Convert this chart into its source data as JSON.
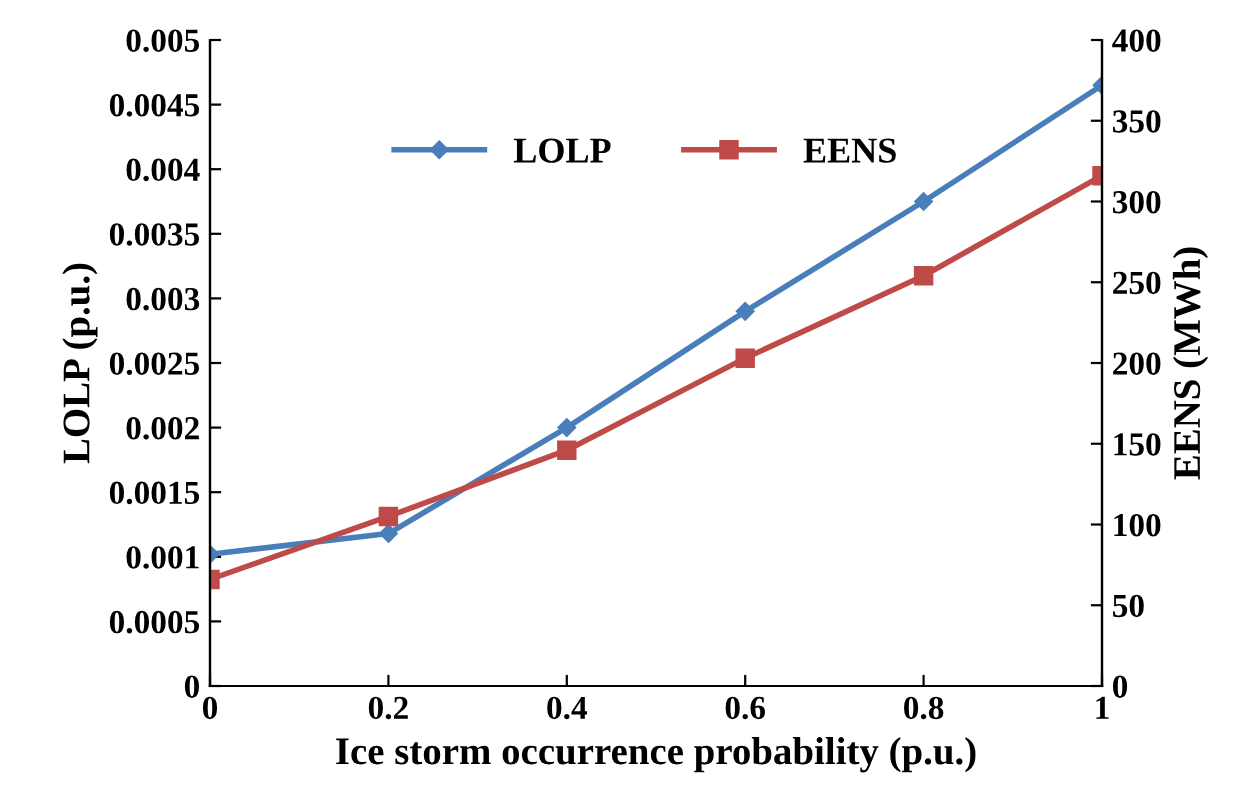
{
  "chart_data": {
    "type": "line",
    "xlabel": "Ice storm occurrence probability (p.u.)",
    "ylabel": "LOLP (p.u.)",
    "y2label": "EENS (MWh)",
    "x": [
      0,
      0.2,
      0.4,
      0.6,
      0.8,
      1
    ],
    "series": [
      {
        "name": "LOLP",
        "color": "#4a7ebb",
        "marker": "diamond",
        "values": [
          0.00102,
          0.00118,
          0.002,
          0.0029,
          0.00375,
          0.00465
        ]
      },
      {
        "name": "EENS",
        "color": "#be4b48",
        "marker": "square",
        "axis": "y2",
        "values": [
          66,
          105,
          146,
          203,
          254,
          316
        ]
      }
    ],
    "xlim": [
      0,
      1
    ],
    "xticks": [
      0,
      0.2,
      0.4,
      0.6,
      0.8,
      1
    ],
    "ylim": [
      0,
      0.005
    ],
    "yticks": [
      0,
      0.0005,
      0.001,
      0.0015,
      0.002,
      0.0025,
      0.003,
      0.0035,
      0.004,
      0.0045,
      0.005
    ],
    "y2lim": [
      0,
      400
    ],
    "y2ticks": [
      0,
      50,
      100,
      150,
      200,
      250,
      300,
      350,
      400
    ],
    "grid": false,
    "legend": "top left",
    "line_style": "solid"
  }
}
